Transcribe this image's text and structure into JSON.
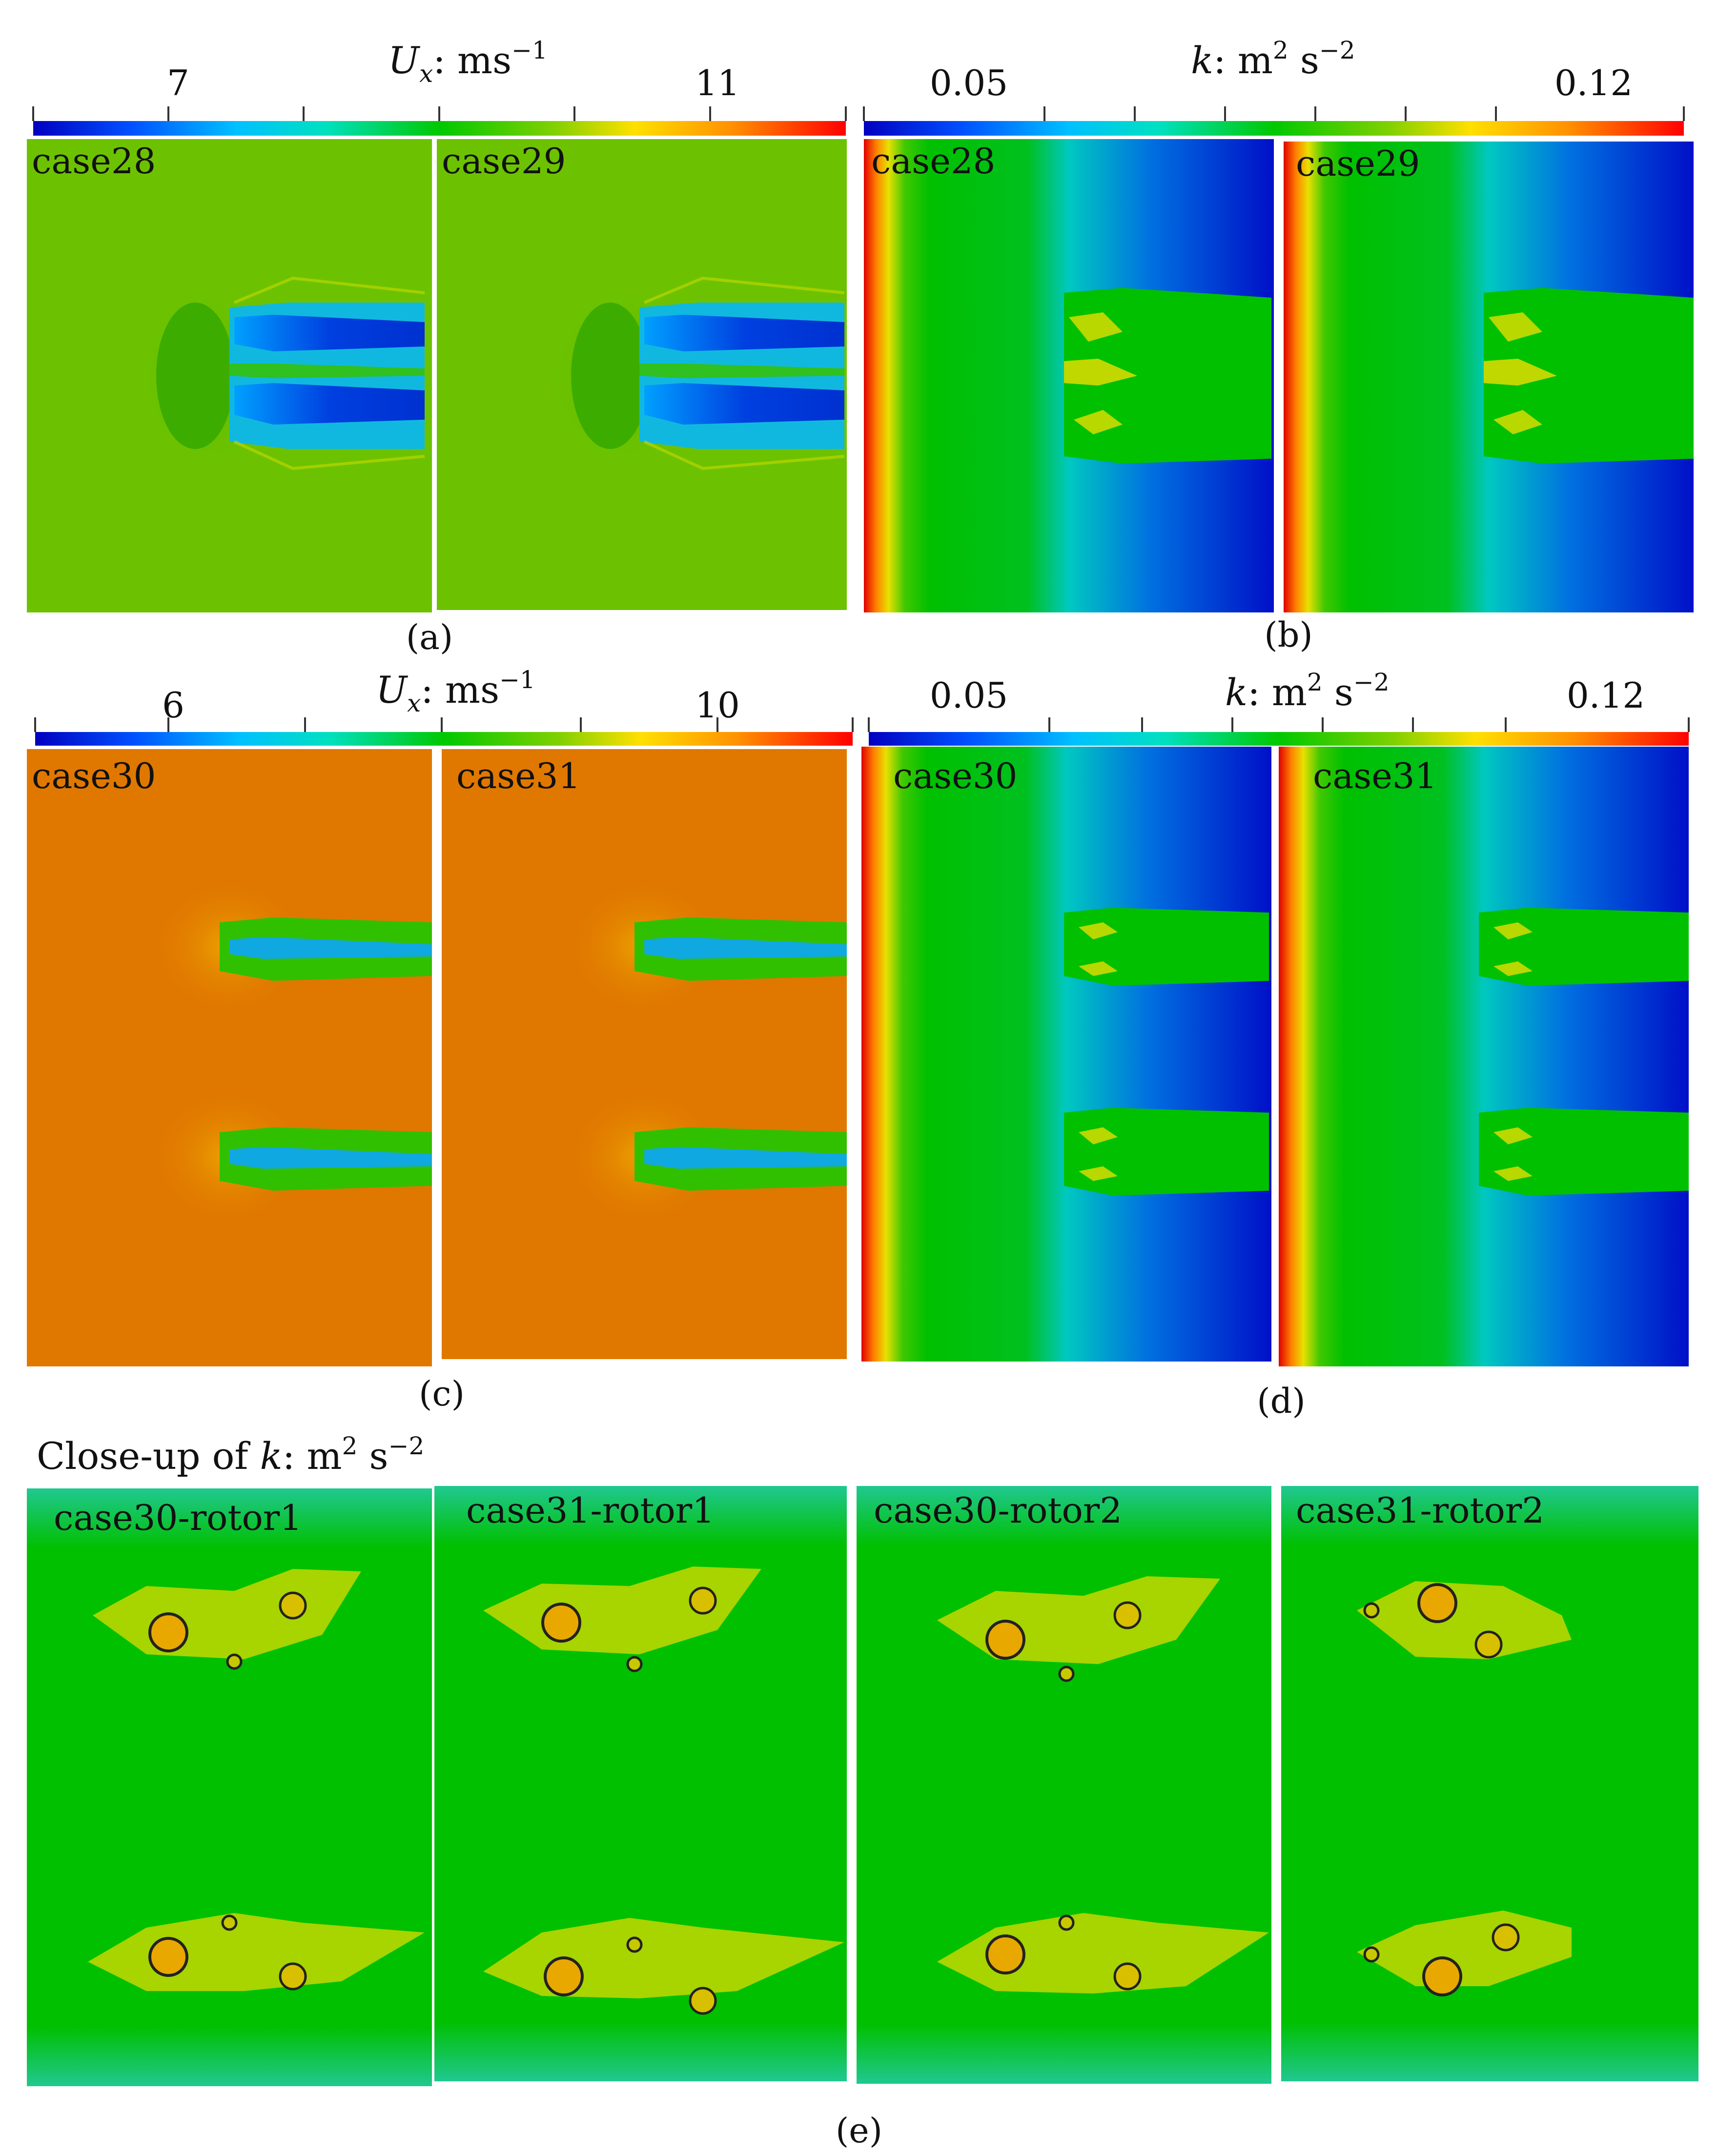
{
  "colorbars": {
    "a": {
      "title_var": "U",
      "title_sub": "x",
      "title_unit": ": ms",
      "title_exp": "−1",
      "ticks": [
        "7",
        "11"
      ]
    },
    "b": {
      "title_var": "k",
      "title_unit": ": m",
      "title_exp1": "2",
      "title_unit2": " s",
      "title_exp2": "−2",
      "ticks": [
        "0.05",
        "0.12"
      ]
    },
    "c": {
      "title_var": "U",
      "title_sub": "x",
      "title_unit": ": ms",
      "title_exp": "−1",
      "ticks": [
        "6",
        "10"
      ]
    },
    "d": {
      "title_var": "k",
      "title_unit": ": m",
      "title_exp1": "2",
      "title_unit2": " s",
      "title_exp2": "−2",
      "ticks": [
        "0.05",
        "0.12"
      ]
    }
  },
  "panels": {
    "a": {
      "label": "(a)",
      "cases": [
        "case28",
        "case29"
      ]
    },
    "b": {
      "label": "(b)",
      "cases": [
        "case28",
        "case29"
      ]
    },
    "c": {
      "label": "(c)",
      "cases": [
        "case30",
        "case31"
      ]
    },
    "d": {
      "label": "(d)",
      "cases": [
        "case30",
        "case31"
      ]
    },
    "e": {
      "label": "(e)",
      "heading_text": "Close-up of ",
      "heading_var": "k",
      "heading_unit": ": m",
      "heading_exp1": "2",
      "heading_unit2": " s",
      "heading_exp2": "−2",
      "cases": [
        "case30-rotor1",
        "case31-rotor1",
        "case30-rotor2",
        "case31-rotor2"
      ]
    }
  },
  "colors": {
    "jet": [
      "#0000c8",
      "#0040ff",
      "#00b4ff",
      "#00e0d0",
      "#00c800",
      "#66d000",
      "#e8e800",
      "#ffa000",
      "#ff2000",
      "#e00000"
    ],
    "ux_field_a": "#6cc200",
    "ux_field_c": "#e07800",
    "k_field_green": "#00c000",
    "k_field_cyan": "#00c8c0",
    "k_field_blue": "#0010c8"
  }
}
